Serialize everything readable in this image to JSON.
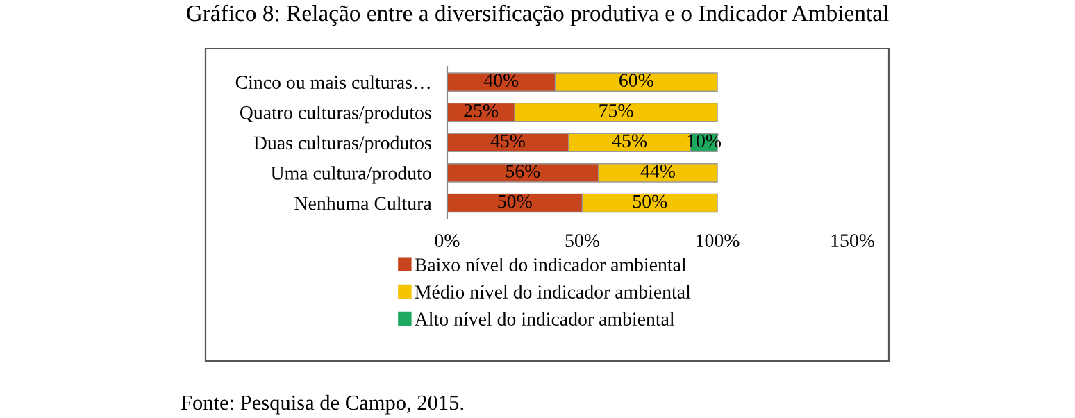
{
  "chart_data": {
    "type": "bar",
    "orientation": "horizontal",
    "stacked": true,
    "title": "Gráfico 8: Relação entre a diversificação produtiva e o Indicador Ambiental",
    "categories": [
      "Cinco ou mais culturas…",
      "Quatro culturas/produtos",
      "Duas culturas/produtos",
      "Uma cultura/produto",
      "Nenhuma Cultura"
    ],
    "series": [
      {
        "name": "Baixo nível do indicador ambiental",
        "color": "#c8441c",
        "values": [
          40,
          25,
          45,
          56,
          50
        ],
        "value_labels": [
          "40%",
          "25%",
          "45%",
          "56%",
          "50%"
        ]
      },
      {
        "name": "Médio nível do indicador ambiental",
        "color": "#f5c400",
        "values": [
          60,
          75,
          45,
          44,
          50
        ],
        "value_labels": [
          "60%",
          "75%",
          "45%",
          "44%",
          "50%"
        ]
      },
      {
        "name": "Alto nível do indicador ambiental",
        "color": "#1fa860",
        "values": [
          null,
          null,
          10,
          null,
          null
        ],
        "value_labels": [
          null,
          null,
          "10%",
          null,
          null
        ]
      }
    ],
    "xlim": [
      0,
      150
    ],
    "xticks": [
      {
        "value": 0,
        "label": "0%"
      },
      {
        "value": 50,
        "label": "50%"
      },
      {
        "value": 100,
        "label": "100%"
      },
      {
        "value": 150,
        "label": "150%"
      }
    ],
    "grid": false,
    "legend": "bottom",
    "annotations": [
      "Fonte: Pesquisa de Campo, 2015."
    ]
  }
}
